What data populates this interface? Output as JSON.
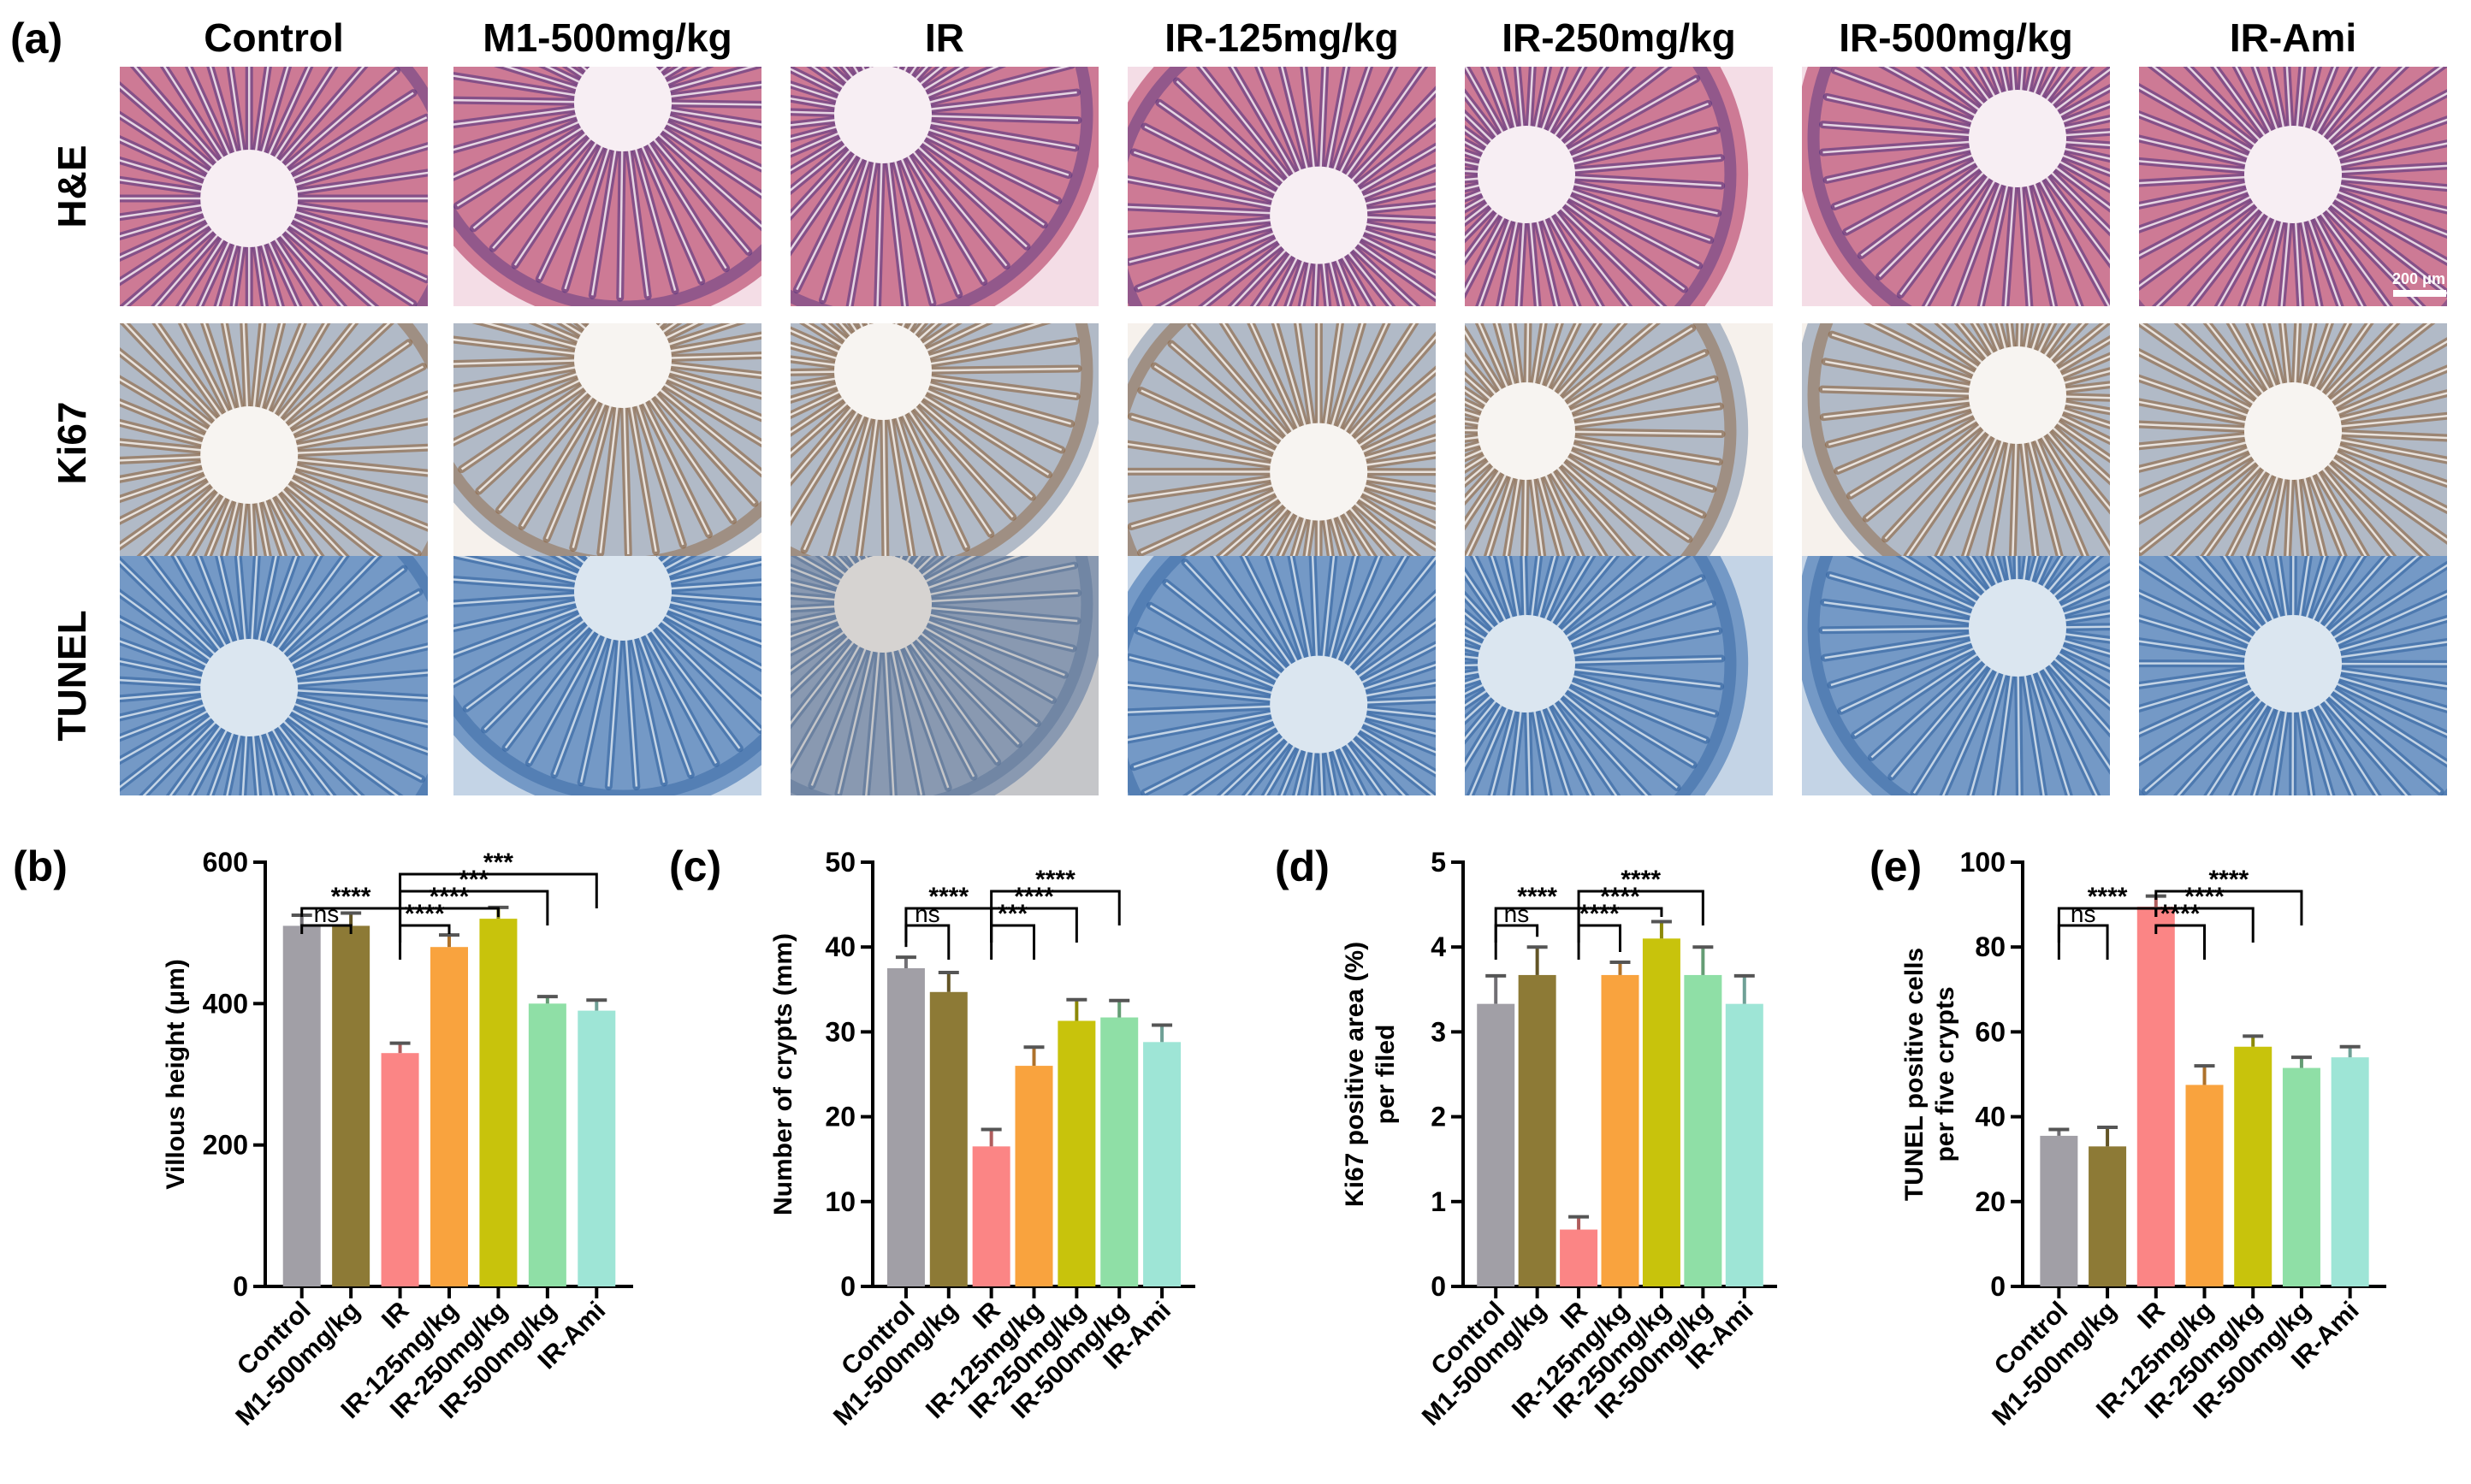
{
  "panel_labels": [
    "(a)",
    "(b)",
    "(c)",
    "(d)",
    "(e)"
  ],
  "micrograph_columns": [
    "Control",
    "M1-500mg/kg",
    "IR",
    "IR-125mg/kg",
    "IR-250mg/kg",
    "IR-500mg/kg",
    "IR-Ami"
  ],
  "micrograph_rows": [
    "H&E",
    "Ki67",
    "TUNEL"
  ],
  "scale_bar_label": "200 μm",
  "stain_colors": {
    "H&E": {
      "bg": "#f4dde6",
      "tissue": "#c0587a",
      "nuclei": "#4b2f7e",
      "lumen": "#f7eef3"
    },
    "Ki67": {
      "bg": "#f6f1ec",
      "tissue": "#9aa7bb",
      "nuclei": "#8a5a30",
      "lumen": "#f7f4f1"
    },
    "TUNEL": {
      "bg": "#c4d4e6",
      "tissue": "#5a86bb",
      "nuclei": "#2f5f9e",
      "lumen": "#dbe6f0"
    }
  },
  "chart_data": [
    {
      "type": "bar",
      "panel": "(b)",
      "categories": [
        "Control",
        "M1-500mg/kg",
        "IR",
        "IR-125mg/kg",
        "IR-250mg/kg",
        "IR-500mg/kg",
        "IR-Ami"
      ],
      "values": [
        510,
        510,
        330,
        480,
        520,
        400,
        390
      ],
      "errors": [
        15,
        18,
        14,
        17,
        16,
        10,
        15
      ],
      "colors": [
        "#a19fa6",
        "#8d7a36",
        "#fb8585",
        "#f9a33e",
        "#c8c30c",
        "#8fdfa6",
        "#9ee5d6"
      ],
      "ylabel": "Villous height (μm)",
      "ylim": [
        0,
        600
      ],
      "yticks": [
        0,
        200,
        400,
        600
      ],
      "brackets": [
        {
          "from": 0,
          "to": 1,
          "label": "ns",
          "level": 0
        },
        {
          "from": 0,
          "to": 2,
          "label": "****",
          "level": 1
        },
        {
          "from": 2,
          "to": 3,
          "label": "****",
          "level": 0
        },
        {
          "from": 2,
          "to": 4,
          "label": "****",
          "level": 1
        },
        {
          "from": 2,
          "to": 5,
          "label": "***",
          "level": 2
        },
        {
          "from": 2,
          "to": 6,
          "label": "***",
          "level": 3
        }
      ]
    },
    {
      "type": "bar",
      "panel": "(c)",
      "categories": [
        "Control",
        "M1-500mg/kg",
        "IR",
        "IR-125mg/kg",
        "IR-250mg/kg",
        "IR-500mg/kg",
        "IR-Ami"
      ],
      "values": [
        37.5,
        34.7,
        16.5,
        26,
        31.3,
        31.7,
        28.8
      ],
      "errors": [
        1.3,
        2.3,
        2,
        2.2,
        2.5,
        2,
        2
      ],
      "colors": [
        "#a19fa6",
        "#8d7a36",
        "#fb8585",
        "#f9a33e",
        "#c8c30c",
        "#8fdfa6",
        "#9ee5d6"
      ],
      "ylabel": "Number of crypts (mm)",
      "ylim": [
        0,
        50
      ],
      "yticks": [
        0,
        10,
        20,
        30,
        40,
        50
      ],
      "brackets": [
        {
          "from": 0,
          "to": 1,
          "label": "ns",
          "level": 0
        },
        {
          "from": 0,
          "to": 2,
          "label": "****",
          "level": 1
        },
        {
          "from": 2,
          "to": 3,
          "label": "***",
          "level": 0
        },
        {
          "from": 2,
          "to": 4,
          "label": "****",
          "level": 1
        },
        {
          "from": 2,
          "to": 5,
          "label": "****",
          "level": 2
        }
      ]
    },
    {
      "type": "bar",
      "panel": "(d)",
      "categories": [
        "Control",
        "M1-500mg/kg",
        "IR",
        "IR-125mg/kg",
        "IR-250mg/kg",
        "IR-500mg/kg",
        "IR-Ami"
      ],
      "values": [
        3.33,
        3.67,
        0.67,
        3.67,
        4.1,
        3.67,
        3.33
      ],
      "errors": [
        0.33,
        0.33,
        0.15,
        0.15,
        0.2,
        0.33,
        0.33
      ],
      "colors": [
        "#a19fa6",
        "#8d7a36",
        "#fb8585",
        "#f9a33e",
        "#c8c30c",
        "#8fdfa6",
        "#9ee5d6"
      ],
      "ylabel": "Ki67 positive area (%)",
      "ylabel2": "per filed",
      "ylim": [
        0,
        5
      ],
      "yticks": [
        0,
        1,
        2,
        3,
        4,
        5
      ],
      "brackets": [
        {
          "from": 0,
          "to": 1,
          "label": "ns",
          "level": 0
        },
        {
          "from": 0,
          "to": 2,
          "label": "****",
          "level": 1
        },
        {
          "from": 2,
          "to": 3,
          "label": "****",
          "level": 0
        },
        {
          "from": 2,
          "to": 4,
          "label": "****",
          "level": 1
        },
        {
          "from": 2,
          "to": 5,
          "label": "****",
          "level": 2
        }
      ]
    },
    {
      "type": "bar",
      "panel": "(e)",
      "categories": [
        "Control",
        "M1-500mg/kg",
        "IR",
        "IR-125mg/kg",
        "IR-250mg/kg",
        "IR-500mg/kg",
        "IR-Ami"
      ],
      "values": [
        35.5,
        33,
        89.5,
        47.5,
        56.5,
        51.5,
        54
      ],
      "errors": [
        1.5,
        4.5,
        2.5,
        4.5,
        2.5,
        2.5,
        2.5
      ],
      "colors": [
        "#a19fa6",
        "#8d7a36",
        "#fb8585",
        "#f9a33e",
        "#c8c30c",
        "#8fdfa6",
        "#9ee5d6"
      ],
      "ylabel": "TUNEL positive cells",
      "ylabel2": "per five crypts",
      "ylim": [
        0,
        100
      ],
      "yticks": [
        0,
        20,
        40,
        60,
        80,
        100
      ],
      "brackets": [
        {
          "from": 0,
          "to": 1,
          "label": "ns",
          "level": 0
        },
        {
          "from": 0,
          "to": 2,
          "label": "****",
          "level": 1
        },
        {
          "from": 2,
          "to": 3,
          "label": "****",
          "level": 0
        },
        {
          "from": 2,
          "to": 4,
          "label": "****",
          "level": 1
        },
        {
          "from": 2,
          "to": 5,
          "label": "****",
          "level": 2
        }
      ]
    }
  ]
}
